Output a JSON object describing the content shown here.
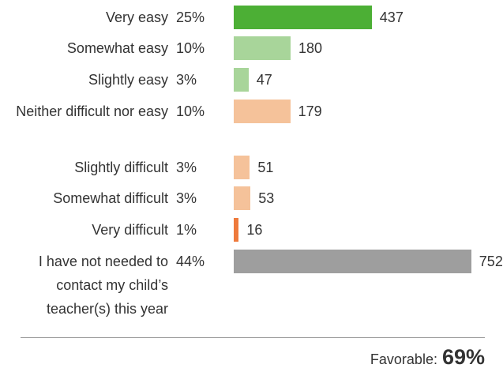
{
  "chart_data": {
    "type": "bar",
    "orientation": "horizontal",
    "categories": [
      "Very easy",
      "Somewhat easy",
      "Slightly easy",
      "Neither difficult nor easy",
      "Slightly difficult",
      "Somewhat difficult",
      "Very difficult",
      "I have not needed to contact my child’s teacher(s) this year"
    ],
    "percentages": [
      "25%",
      "10%",
      "3%",
      "10%",
      "3%",
      "3%",
      "1%",
      "44%"
    ],
    "values": [
      437,
      180,
      47,
      179,
      51,
      53,
      16,
      752
    ],
    "colors": [
      "#4caf35",
      "#a8d59a",
      "#a8d59a",
      "#f5c29a",
      "#f5c29a",
      "#f5c29a",
      "#ee7a3c",
      "#9e9e9e"
    ],
    "xlim": [
      0,
      1000
    ],
    "grid": false,
    "legend": "none"
  },
  "footer": {
    "label": "Favorable:",
    "value": "69%"
  }
}
